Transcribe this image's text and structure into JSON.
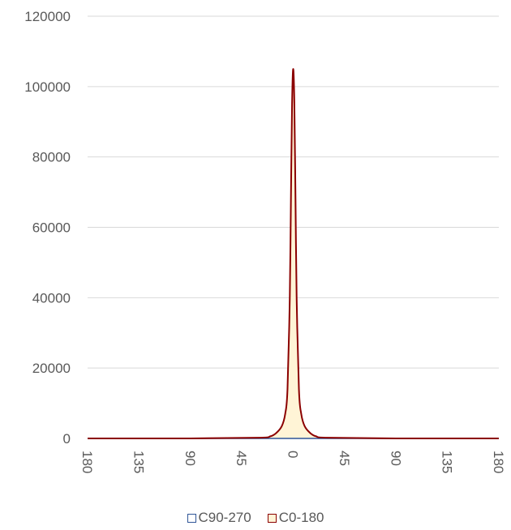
{
  "colors": {
    "c90_270_stroke": "#2F5597",
    "c0_180_stroke": "#8B0000",
    "c0_180_fill": "#FFF4D6",
    "grid": "#D9D9D9",
    "text": "#595959"
  },
  "legend": {
    "items": [
      {
        "label": "C90-270",
        "swatch": "c90_270_stroke"
      },
      {
        "label": "C0-180",
        "swatch": "c0_180_stroke"
      }
    ]
  },
  "chart_data": {
    "type": "area",
    "title": "",
    "xlabel": "",
    "ylabel": "",
    "ylim": [
      0,
      120000
    ],
    "xlim": [
      -180,
      180
    ],
    "y_ticks": [
      "0",
      "20000",
      "40000",
      "60000",
      "80000",
      "100000",
      "120000"
    ],
    "x_ticks": [
      {
        "value": -180,
        "label": "180"
      },
      {
        "value": -135,
        "label": "135"
      },
      {
        "value": -90,
        "label": "90"
      },
      {
        "value": -45,
        "label": "45"
      },
      {
        "value": 0,
        "label": "0"
      },
      {
        "value": 45,
        "label": "45"
      },
      {
        "value": 90,
        "label": "90"
      },
      {
        "value": 135,
        "label": "135"
      },
      {
        "value": 180,
        "label": "180"
      }
    ],
    "grid": true,
    "legend_position": "bottom",
    "series": [
      {
        "name": "C90-270",
        "x": [
          -180,
          -90,
          -30,
          -10,
          0,
          10,
          30,
          90,
          180
        ],
        "values": [
          0,
          0,
          0,
          0,
          0,
          0,
          0,
          0,
          0
        ]
      },
      {
        "name": "C0-180",
        "x": [
          -180,
          -90,
          -30,
          -20,
          -15,
          -10,
          -7,
          -5,
          -3,
          -2,
          -1,
          0,
          1,
          2,
          3,
          5,
          7,
          10,
          15,
          20,
          30,
          90,
          180
        ],
        "values": [
          0,
          0,
          200,
          600,
          1500,
          3500,
          7000,
          14000,
          40000,
          68000,
          95000,
          105000,
          95000,
          68000,
          40000,
          14000,
          7000,
          3500,
          1500,
          600,
          200,
          0,
          0
        ]
      }
    ]
  }
}
